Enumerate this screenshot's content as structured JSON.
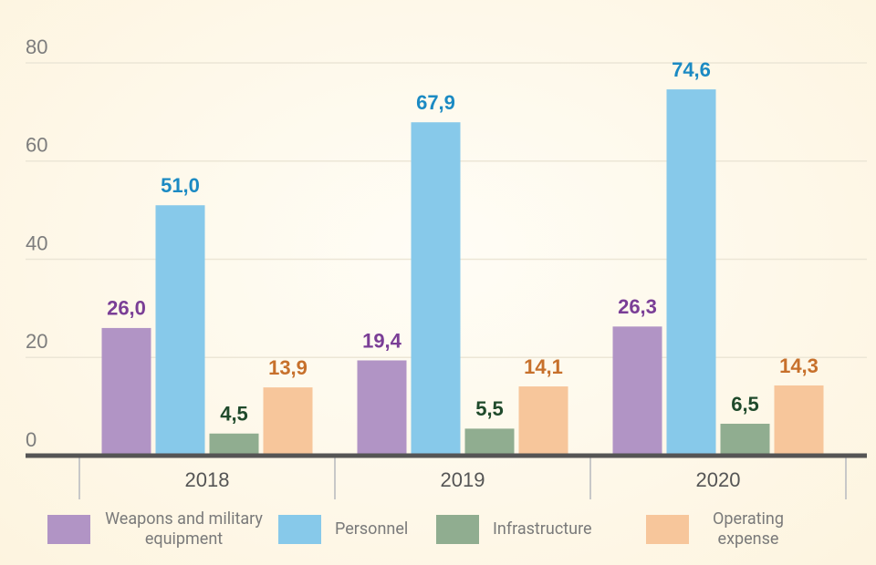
{
  "chart_data": {
    "type": "bar",
    "categories": [
      "2018",
      "2019",
      "2020"
    ],
    "series": [
      {
        "name": "Weapons and military equipment",
        "color": "#b194c5",
        "label_color": "#7a3e96",
        "values": [
          26.0,
          19.4,
          26.3
        ],
        "value_labels": [
          "26,0",
          "19,4",
          "26,3"
        ]
      },
      {
        "name": "Personnel",
        "color": "#87c9ea",
        "label_color": "#1b8ac3",
        "values": [
          51.0,
          67.9,
          74.6
        ],
        "value_labels": [
          "51,0",
          "67,9",
          "74,6"
        ]
      },
      {
        "name": "Infrastructure",
        "color": "#90ad90",
        "label_color": "#1f4a2b",
        "values": [
          4.5,
          5.5,
          6.5
        ],
        "value_labels": [
          "4,5",
          "5,5",
          "6,5"
        ]
      },
      {
        "name": "Operating expense",
        "color": "#f7c69b",
        "label_color": "#c7702b",
        "values": [
          13.9,
          14.1,
          14.3
        ],
        "value_labels": [
          "13,9",
          "14,1",
          "14,3"
        ]
      }
    ],
    "ylim": [
      0,
      80
    ],
    "yticks": [
      0,
      20,
      40,
      60,
      80
    ],
    "grid": true
  }
}
